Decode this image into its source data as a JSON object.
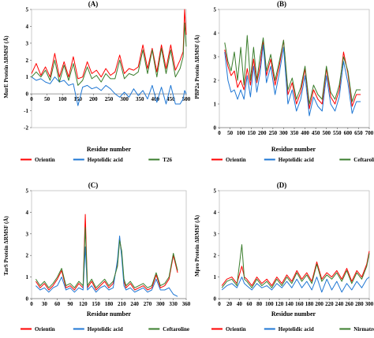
{
  "chart_data": [
    {
      "type": "line",
      "panel_label": "(A)",
      "ylabel": "MurE Protein ΔRMSF (Å)",
      "xlabel": "Residue number",
      "xlim": [
        0,
        500
      ],
      "ylim": [
        -2,
        5
      ],
      "xticks": [
        0,
        50,
        100,
        150,
        200,
        250,
        300,
        350,
        400,
        450,
        500
      ],
      "yticks": [
        -2,
        -1,
        0,
        1,
        2,
        3,
        4,
        5
      ],
      "grid": false,
      "legend_position": "bottom",
      "series": [
        {
          "name": "Orientin",
          "color": "#ff0000",
          "x": [
            0,
            15,
            30,
            45,
            60,
            75,
            90,
            105,
            120,
            135,
            150,
            165,
            180,
            195,
            210,
            225,
            240,
            255,
            270,
            285,
            300,
            315,
            330,
            345,
            360,
            375,
            390,
            405,
            420,
            435,
            450,
            465,
            480,
            490,
            495,
            500
          ],
          "y": [
            1.2,
            1.8,
            1.1,
            1.6,
            1.0,
            2.4,
            1.0,
            1.9,
            1.0,
            2.2,
            0.9,
            1.0,
            1.9,
            1.2,
            1.4,
            1.0,
            1.5,
            1.1,
            1.3,
            2.3,
            1.2,
            1.5,
            1.4,
            1.6,
            2.9,
            1.5,
            2.7,
            1.3,
            2.9,
            1.5,
            2.9,
            1.4,
            2.0,
            2.5,
            5.0,
            3.5
          ]
        },
        {
          "name": "Heptelidic acid",
          "color": "#1f77d4",
          "x": [
            0,
            15,
            30,
            45,
            60,
            75,
            90,
            105,
            120,
            135,
            150,
            165,
            180,
            195,
            210,
            225,
            240,
            255,
            270,
            285,
            300,
            315,
            330,
            345,
            360,
            375,
            390,
            405,
            420,
            435,
            450,
            465,
            480,
            490,
            495,
            500
          ],
          "y": [
            1.0,
            0.8,
            0.9,
            0.7,
            0.6,
            1.0,
            0.7,
            0.8,
            0.5,
            0.6,
            -0.7,
            0.4,
            0.5,
            0.3,
            0.4,
            0.2,
            0.5,
            0.3,
            0.0,
            -0.2,
            0.1,
            -0.2,
            0.3,
            -0.1,
            0.2,
            -0.3,
            0.5,
            -0.5,
            0.4,
            -0.6,
            0.5,
            -0.6,
            -0.6,
            -0.3,
            0.2,
            0.0
          ]
        },
        {
          "name": "T26",
          "color": "#3a7d2c",
          "x": [
            0,
            15,
            30,
            45,
            60,
            75,
            90,
            105,
            120,
            135,
            150,
            165,
            180,
            195,
            210,
            225,
            240,
            255,
            270,
            285,
            300,
            315,
            330,
            345,
            360,
            375,
            390,
            405,
            420,
            435,
            450,
            465,
            480,
            490,
            495,
            500
          ],
          "y": [
            1.0,
            1.3,
            1.0,
            1.4,
            0.8,
            2.0,
            0.7,
            1.7,
            0.8,
            1.8,
            0.5,
            0.8,
            1.6,
            0.9,
            1.1,
            0.7,
            1.2,
            0.9,
            0.9,
            2.0,
            0.9,
            1.2,
            1.1,
            1.3,
            2.6,
            1.2,
            2.6,
            1.0,
            2.7,
            1.2,
            2.6,
            1.0,
            1.5,
            2.2,
            4.2,
            2.8
          ]
        }
      ]
    },
    {
      "type": "line",
      "panel_label": "(B)",
      "ylabel": "PBP2a Protein ΔRMSF (Å)",
      "xlabel": "Residue number",
      "xlim": [
        0,
        700
      ],
      "ylim": [
        0,
        5
      ],
      "xticks": [
        0,
        50,
        100,
        150,
        200,
        250,
        300,
        350,
        400,
        450,
        500,
        550,
        600,
        650,
        700
      ],
      "yticks": [
        0,
        1,
        2,
        3,
        4,
        5
      ],
      "grid": false,
      "legend_position": "bottom",
      "series": [
        {
          "name": "Orientin",
          "color": "#ff0000",
          "x": [
            25,
            40,
            55,
            70,
            85,
            100,
            115,
            130,
            145,
            160,
            175,
            190,
            205,
            220,
            240,
            260,
            280,
            300,
            320,
            340,
            360,
            380,
            400,
            420,
            440,
            460,
            480,
            500,
            520,
            540,
            560,
            580,
            600,
            620,
            640,
            660
          ],
          "y": [
            3.3,
            2.6,
            2.2,
            2.4,
            1.7,
            2.0,
            1.6,
            2.5,
            1.8,
            2.9,
            1.9,
            2.6,
            3.7,
            2.2,
            2.9,
            1.8,
            2.6,
            3.7,
            1.4,
            1.9,
            1.0,
            1.5,
            2.5,
            0.8,
            1.6,
            1.2,
            1.0,
            2.5,
            1.3,
            1.0,
            1.6,
            3.2,
            2.3,
            0.9,
            1.4,
            1.4
          ]
        },
        {
          "name": "Heptelidic acid",
          "color": "#1f77d4",
          "x": [
            25,
            40,
            55,
            70,
            85,
            100,
            115,
            130,
            145,
            160,
            175,
            190,
            205,
            220,
            240,
            260,
            280,
            300,
            320,
            340,
            360,
            380,
            400,
            420,
            440,
            460,
            480,
            500,
            520,
            540,
            560,
            580,
            600,
            620,
            640,
            660
          ],
          "y": [
            3.2,
            2.0,
            1.5,
            1.6,
            1.2,
            1.6,
            1.2,
            2.2,
            1.3,
            2.6,
            1.5,
            2.3,
            3.5,
            1.9,
            2.6,
            1.4,
            2.3,
            3.4,
            1.0,
            1.6,
            0.7,
            1.2,
            2.2,
            0.5,
            1.3,
            0.9,
            0.7,
            2.2,
            1.0,
            0.7,
            1.3,
            2.8,
            1.9,
            0.6,
            1.1,
            1.1
          ]
        },
        {
          "name": "Ceftaroline",
          "color": "#3a7d2c",
          "x": [
            25,
            40,
            55,
            70,
            85,
            100,
            115,
            130,
            145,
            160,
            175,
            190,
            205,
            220,
            240,
            260,
            280,
            300,
            320,
            340,
            360,
            380,
            400,
            420,
            440,
            460,
            480,
            500,
            520,
            540,
            560,
            580,
            600,
            620,
            640,
            660
          ],
          "y": [
            3.6,
            2.8,
            2.4,
            3.2,
            2.0,
            3.4,
            1.8,
            3.9,
            2.0,
            3.4,
            2.0,
            3.0,
            3.8,
            2.4,
            3.1,
            2.0,
            2.8,
            3.7,
            1.6,
            2.1,
            1.2,
            1.7,
            2.6,
            1.0,
            1.8,
            1.4,
            1.2,
            2.6,
            1.5,
            1.2,
            1.8,
            3.0,
            2.4,
            1.1,
            1.6,
            1.6
          ]
        }
      ]
    },
    {
      "type": "line",
      "panel_label": "(C)",
      "ylabel": "TarS Protein ΔRMSF (Å)",
      "xlabel": "Residue number",
      "xlim": [
        0,
        360
      ],
      "ylim": [
        0,
        5
      ],
      "xticks": [
        0,
        30,
        60,
        90,
        120,
        150,
        180,
        210,
        240,
        270,
        300,
        330,
        360
      ],
      "yticks": [
        0,
        1,
        2,
        3,
        4,
        5
      ],
      "grid": false,
      "legend_position": "bottom",
      "series": [
        {
          "name": "Orientin",
          "color": "#ff0000",
          "x": [
            10,
            20,
            30,
            40,
            50,
            60,
            70,
            80,
            90,
            100,
            110,
            120,
            125,
            130,
            140,
            150,
            160,
            170,
            180,
            190,
            200,
            205,
            210,
            215,
            220,
            230,
            240,
            250,
            260,
            270,
            280,
            290,
            300,
            310,
            320,
            330,
            340
          ],
          "y": [
            0.8,
            0.5,
            0.7,
            0.4,
            0.6,
            0.9,
            1.3,
            0.5,
            0.6,
            0.4,
            0.7,
            0.5,
            3.9,
            0.5,
            0.8,
            0.4,
            0.6,
            0.8,
            0.5,
            0.7,
            1.6,
            2.8,
            2.0,
            0.8,
            0.5,
            0.7,
            0.4,
            0.5,
            0.6,
            0.4,
            0.5,
            1.1,
            0.5,
            0.6,
            0.9,
            2.0,
            1.2
          ]
        },
        {
          "name": "Heptelidic acid",
          "color": "#1f77d4",
          "x": [
            10,
            20,
            30,
            40,
            50,
            60,
            70,
            80,
            90,
            100,
            110,
            120,
            125,
            130,
            140,
            150,
            160,
            170,
            180,
            190,
            200,
            205,
            210,
            215,
            220,
            230,
            240,
            250,
            260,
            270,
            280,
            290,
            300,
            310,
            320,
            330,
            340
          ],
          "y": [
            0.6,
            0.4,
            0.5,
            0.3,
            0.5,
            0.6,
            1.0,
            0.4,
            0.5,
            0.3,
            0.5,
            0.4,
            2.4,
            0.4,
            0.6,
            0.3,
            0.5,
            0.6,
            0.4,
            0.5,
            1.8,
            2.9,
            1.9,
            0.6,
            0.4,
            0.5,
            0.3,
            0.4,
            0.5,
            0.3,
            0.4,
            0.9,
            0.4,
            0.4,
            0.5,
            0.2,
            0.1
          ]
        },
        {
          "name": "Ceftaroline",
          "color": "#3a7d2c",
          "x": [
            10,
            20,
            30,
            40,
            50,
            60,
            70,
            80,
            90,
            100,
            110,
            120,
            125,
            130,
            140,
            150,
            160,
            170,
            180,
            190,
            200,
            205,
            210,
            215,
            220,
            230,
            240,
            250,
            260,
            270,
            280,
            290,
            300,
            310,
            320,
            330,
            340
          ],
          "y": [
            0.9,
            0.6,
            0.8,
            0.5,
            0.7,
            1.0,
            1.4,
            0.6,
            0.7,
            0.5,
            0.8,
            0.6,
            3.3,
            0.6,
            0.9,
            0.5,
            0.7,
            0.9,
            0.6,
            0.8,
            1.5,
            2.7,
            2.2,
            0.9,
            0.6,
            0.8,
            0.5,
            0.6,
            0.7,
            0.5,
            0.6,
            1.2,
            0.6,
            0.7,
            1.0,
            2.1,
            1.3
          ]
        }
      ]
    },
    {
      "type": "line",
      "panel_label": "(D)",
      "ylabel": "Mpro Protein ΔRMSF (Å)",
      "xlabel": "Residue number",
      "xlim": [
        0,
        300
      ],
      "ylim": [
        0,
        5
      ],
      "xticks": [
        0,
        20,
        40,
        60,
        80,
        100,
        120,
        140,
        160,
        180,
        200,
        220,
        240,
        260,
        280,
        300
      ],
      "yticks": [
        0,
        1,
        2,
        3,
        4,
        5
      ],
      "grid": false,
      "legend_position": "bottom",
      "series": [
        {
          "name": "Orientin",
          "color": "#ff0000",
          "x": [
            5,
            15,
            25,
            35,
            45,
            50,
            55,
            65,
            75,
            85,
            95,
            105,
            115,
            125,
            135,
            145,
            155,
            165,
            175,
            185,
            195,
            205,
            215,
            225,
            235,
            245,
            255,
            265,
            275,
            285,
            295,
            300
          ],
          "y": [
            0.6,
            0.9,
            1.0,
            0.7,
            1.5,
            1.0,
            0.9,
            0.6,
            1.0,
            0.7,
            0.9,
            0.6,
            1.0,
            0.7,
            1.1,
            0.8,
            1.3,
            0.9,
            1.2,
            0.8,
            1.7,
            0.9,
            1.2,
            1.0,
            1.3,
            0.9,
            1.4,
            0.8,
            1.3,
            1.0,
            1.6,
            2.2
          ]
        },
        {
          "name": "Heptelidic acid",
          "color": "#1f77d4",
          "x": [
            5,
            15,
            25,
            35,
            45,
            50,
            55,
            65,
            75,
            85,
            95,
            105,
            115,
            125,
            135,
            145,
            155,
            165,
            175,
            185,
            195,
            205,
            215,
            225,
            235,
            245,
            255,
            265,
            275,
            285,
            295,
            300
          ],
          "y": [
            0.4,
            0.6,
            0.7,
            0.5,
            1.0,
            0.7,
            0.6,
            0.4,
            0.7,
            0.5,
            0.6,
            0.4,
            0.7,
            0.5,
            0.8,
            0.5,
            0.9,
            0.5,
            0.8,
            0.4,
            1.0,
            0.3,
            0.9,
            0.4,
            0.8,
            0.3,
            0.7,
            0.4,
            0.8,
            0.5,
            0.9,
            1.0
          ]
        },
        {
          "name": "Nirmatrelvir",
          "color": "#3a7d2c",
          "x": [
            5,
            15,
            25,
            35,
            45,
            50,
            55,
            65,
            75,
            85,
            95,
            105,
            115,
            125,
            135,
            145,
            155,
            165,
            175,
            185,
            195,
            205,
            215,
            225,
            235,
            245,
            255,
            265,
            275,
            285,
            295,
            300
          ],
          "y": [
            0.5,
            0.8,
            0.9,
            0.6,
            2.5,
            0.9,
            0.8,
            0.5,
            0.9,
            0.6,
            0.8,
            0.5,
            0.9,
            0.6,
            1.0,
            0.7,
            1.2,
            0.8,
            1.1,
            0.7,
            1.6,
            0.8,
            1.1,
            0.9,
            1.2,
            0.8,
            1.3,
            0.7,
            1.2,
            0.9,
            1.5,
            2.1
          ]
        }
      ]
    }
  ]
}
